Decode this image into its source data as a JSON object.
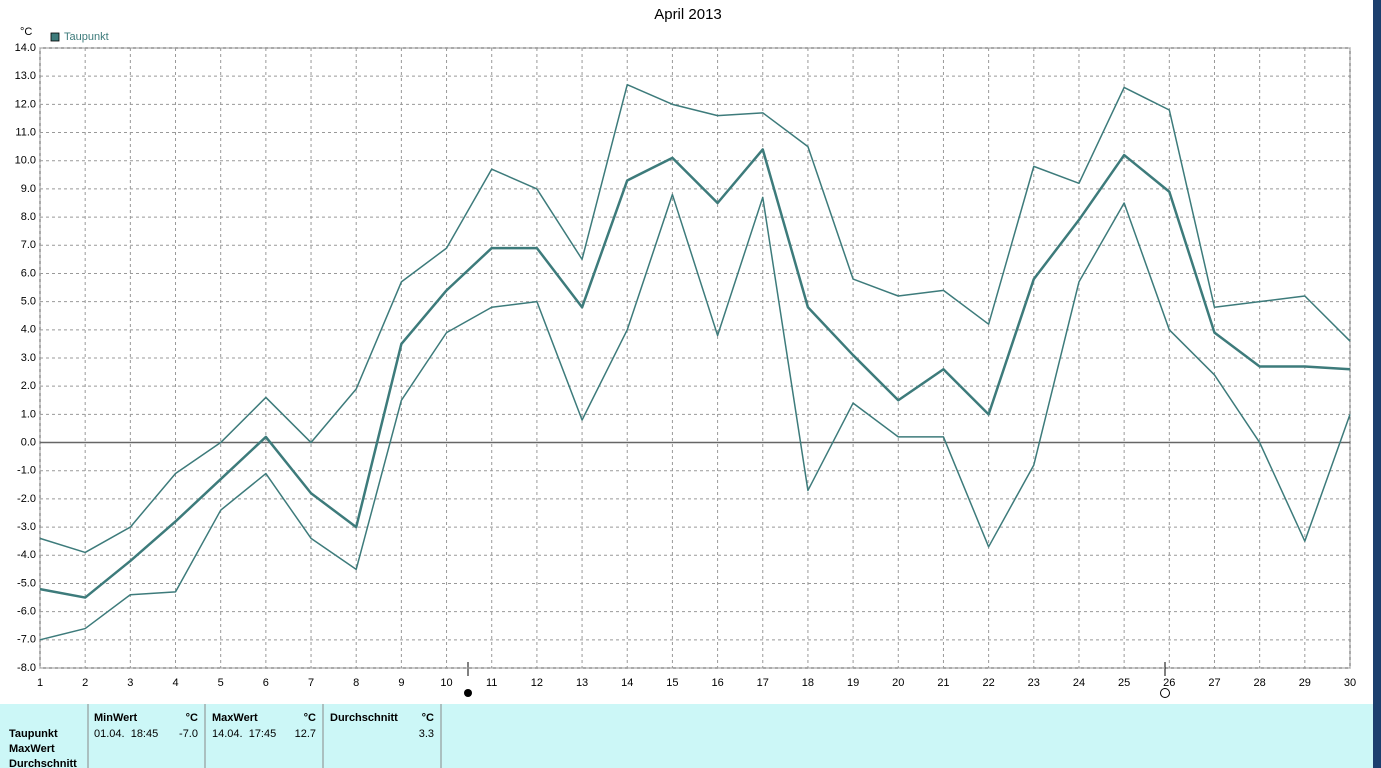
{
  "chart_data": {
    "type": "line",
    "title": "April 2013",
    "y_label": "°C",
    "x": [
      1,
      2,
      3,
      4,
      5,
      6,
      7,
      8,
      9,
      10,
      11,
      12,
      13,
      14,
      15,
      16,
      17,
      18,
      19,
      20,
      21,
      22,
      23,
      24,
      25,
      26,
      27,
      28,
      29,
      30
    ],
    "xlim": [
      1,
      30
    ],
    "xticks": [
      1,
      2,
      3,
      4,
      5,
      6,
      7,
      8,
      9,
      10,
      11,
      12,
      13,
      14,
      15,
      16,
      17,
      18,
      19,
      20,
      21,
      22,
      23,
      24,
      25,
      26,
      27,
      28,
      29,
      30
    ],
    "ylim": [
      -8,
      14
    ],
    "yticks": [
      {
        "value": 14,
        "label": "14.0"
      },
      {
        "value": 13,
        "label": "13.0"
      },
      {
        "value": 12,
        "label": "12.0"
      },
      {
        "value": 11,
        "label": "11.0"
      },
      {
        "value": 10,
        "label": "10.0"
      },
      {
        "value": 9,
        "label": "9.0"
      },
      {
        "value": 8,
        "label": "8.0"
      },
      {
        "value": 7,
        "label": "7.0"
      },
      {
        "value": 6,
        "label": "6.0"
      },
      {
        "value": 5,
        "label": "5.0"
      },
      {
        "value": 4,
        "label": "4.0"
      },
      {
        "value": 3,
        "label": "3.0"
      },
      {
        "value": 2,
        "label": "2.0"
      },
      {
        "value": 1,
        "label": "1.0"
      },
      {
        "value": 0,
        "label": "0.0"
      },
      {
        "value": -1,
        "label": "-1.0"
      },
      {
        "value": -2,
        "label": "-2.0"
      },
      {
        "value": -3,
        "label": "-3.0"
      },
      {
        "value": -4,
        "label": "-4.0"
      },
      {
        "value": -5,
        "label": "-5.0"
      },
      {
        "value": -6,
        "label": "-6.0"
      },
      {
        "value": -7,
        "label": "-7.0"
      },
      {
        "value": -8,
        "label": "-8.0"
      }
    ],
    "grid": true,
    "legend": "top-left",
    "series": [
      {
        "name": "Taupunkt",
        "color": "#3d7b7b",
        "linewidth": 2.5,
        "values": [
          -5.2,
          -5.5,
          -4.2,
          -2.8,
          -1.3,
          0.2,
          -1.8,
          -3.0,
          3.5,
          5.4,
          6.9,
          6.9,
          4.8,
          9.3,
          10.1,
          8.5,
          10.4,
          4.8,
          3.1,
          1.5,
          2.6,
          1.0,
          5.8,
          7.9,
          10.2,
          8.9,
          3.9,
          2.7,
          2.7,
          2.6
        ]
      },
      {
        "color": "#3d7b7b",
        "linewidth": 1.5,
        "values": [
          -3.4,
          -3.9,
          -3.0,
          -1.1,
          0.0,
          1.6,
          0.0,
          1.9,
          5.7,
          6.9,
          9.7,
          9.0,
          6.5,
          12.7,
          12.0,
          11.6,
          11.7,
          10.5,
          5.8,
          5.2,
          5.4,
          4.2,
          9.8,
          9.2,
          12.6,
          11.8,
          4.8,
          5.0,
          5.2,
          3.6
        ]
      },
      {
        "color": "#3d7b7b",
        "linewidth": 1.5,
        "values": [
          -7.0,
          -6.6,
          -5.4,
          -5.3,
          -2.4,
          -1.1,
          -3.4,
          -4.5,
          1.5,
          3.9,
          4.8,
          5.0,
          0.8,
          4.0,
          8.8,
          3.8,
          8.7,
          -1.7,
          1.4,
          0.2,
          0.2,
          -3.7,
          -0.8,
          5.7,
          8.5,
          4.0,
          2.4,
          0.0,
          -3.5,
          1.0
        ]
      }
    ]
  },
  "table": {
    "row_labels": [
      "Taupunkt",
      "MaxWert",
      "Durchschnitt"
    ],
    "groups": [
      {
        "header": "MinWert",
        "unit": "°C",
        "time": "01.04.  18:45",
        "value": "-7.0"
      },
      {
        "header": "MaxWert",
        "unit": "°C",
        "time": "14.04.  17:45",
        "value": "12.7"
      },
      {
        "header": "Durchschnitt",
        "unit": "°C",
        "value": "3.3"
      }
    ]
  }
}
